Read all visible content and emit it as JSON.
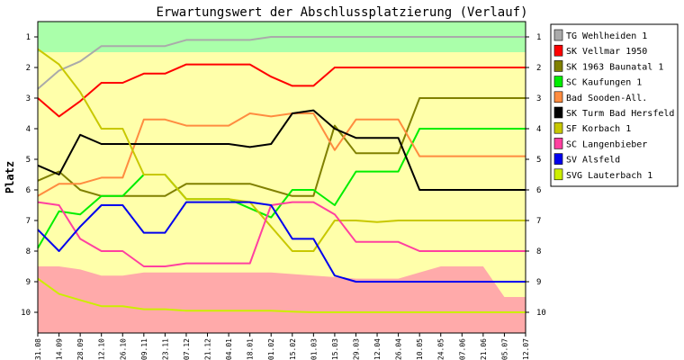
{
  "chart_data": {
    "type": "line",
    "title": "Erwartungswert der Abschlussplatzierung (Verlauf)",
    "ylabel": "Platz",
    "xlabel": "",
    "ylim": [
      1,
      10
    ],
    "y_inverted": true,
    "yticks": [
      1,
      2,
      3,
      4,
      5,
      6,
      7,
      8,
      9,
      10
    ],
    "grid": false,
    "legend_position": "right",
    "categories": [
      "31.08",
      "14.09",
      "28.09",
      "12.10",
      "26.10",
      "09.11",
      "23.11",
      "07.12",
      "21.12",
      "04.01",
      "18.01",
      "01.02",
      "15.02",
      "01.03",
      "15.03",
      "29.03",
      "12.04",
      "26.04",
      "10.05",
      "24.05",
      "07.06",
      "21.06",
      "05.07",
      "12.07"
    ],
    "bands": {
      "green": {
        "color": "#aaffaa",
        "from": 0.5,
        "to": 1.5
      },
      "yellow": {
        "color": "#ffffaa",
        "from": 1.5,
        "to": 10.5
      },
      "red": {
        "color": "#ffaaaa",
        "upper": [
          8.5,
          8.5,
          8.6,
          8.8,
          8.8,
          8.7,
          8.7,
          8.7,
          8.7,
          8.7,
          8.7,
          8.7,
          8.75,
          8.8,
          8.85,
          8.9,
          8.9,
          8.9,
          8.7,
          8.5,
          8.5,
          8.5,
          9.5,
          9.5
        ]
      }
    },
    "series": [
      {
        "name": "TG Wehlheiden 1",
        "color": "#aaaaaa",
        "values": [
          2.7,
          2.1,
          1.8,
          1.3,
          1.3,
          1.3,
          1.3,
          1.1,
          1.1,
          1.1,
          1.1,
          1.0,
          1.0,
          1.0,
          1.0,
          1.0,
          1.0,
          1.0,
          1.0,
          1.0,
          1.0,
          1.0,
          1.0,
          1.0
        ]
      },
      {
        "name": "SK Vellmar 1950",
        "color": "#ff0000",
        "values": [
          3.0,
          3.6,
          3.1,
          2.5,
          2.5,
          2.2,
          2.2,
          1.9,
          1.9,
          1.9,
          1.9,
          2.3,
          2.6,
          2.6,
          2.0,
          2.0,
          2.0,
          2.0,
          2.0,
          2.0,
          2.0,
          2.0,
          2.0,
          2.0
        ]
      },
      {
        "name": "SK 1963 Baunatal 1",
        "color": "#808000",
        "values": [
          5.7,
          5.4,
          6.0,
          6.2,
          6.2,
          6.2,
          6.2,
          5.8,
          5.8,
          5.8,
          5.8,
          6.0,
          6.2,
          6.2,
          3.9,
          4.8,
          4.8,
          4.8,
          3.0,
          3.0,
          3.0,
          3.0,
          3.0,
          3.0
        ]
      },
      {
        "name": "SC Kaufungen 1",
        "color": "#00ee00",
        "values": [
          7.9,
          6.7,
          6.8,
          6.2,
          6.2,
          5.5,
          5.5,
          6.3,
          6.3,
          6.3,
          6.6,
          6.9,
          6.0,
          6.0,
          6.5,
          5.4,
          5.4,
          5.4,
          4.0,
          4.0,
          4.0,
          4.0,
          4.0,
          4.0
        ]
      },
      {
        "name": "Bad Sooden-All.",
        "color": "#ff8c40",
        "values": [
          6.2,
          5.8,
          5.8,
          5.6,
          5.6,
          3.7,
          3.7,
          3.9,
          3.9,
          3.9,
          3.5,
          3.6,
          3.5,
          3.5,
          4.7,
          3.7,
          3.7,
          3.7,
          4.9,
          4.9,
          4.9,
          4.9,
          4.9,
          4.9
        ]
      },
      {
        "name": "SK Turm Bad Hersfeld",
        "color": "#000000",
        "values": [
          5.2,
          5.5,
          4.2,
          4.5,
          4.5,
          4.5,
          4.5,
          4.5,
          4.5,
          4.5,
          4.6,
          4.5,
          3.5,
          3.4,
          4.0,
          4.3,
          4.3,
          4.3,
          6.0,
          6.0,
          6.0,
          6.0,
          6.0,
          6.0
        ]
      },
      {
        "name": "SF Korbach 1",
        "color": "#c8c800",
        "values": [
          1.4,
          1.9,
          2.8,
          4.0,
          4.0,
          5.5,
          5.5,
          6.3,
          6.3,
          6.3,
          6.4,
          7.2,
          8.0,
          8.0,
          7.0,
          7.0,
          7.05,
          7.0,
          7.0,
          7.0,
          7.0,
          7.0,
          7.0,
          7.0
        ]
      },
      {
        "name": "SC Langenbieber",
        "color": "#ff40a0",
        "values": [
          6.4,
          6.5,
          7.6,
          8.0,
          8.0,
          8.5,
          8.5,
          8.4,
          8.4,
          8.4,
          8.4,
          6.5,
          6.4,
          6.4,
          6.8,
          7.7,
          7.7,
          7.7,
          8.0,
          8.0,
          8.0,
          8.0,
          8.0,
          8.0
        ]
      },
      {
        "name": "SV Alsfeld",
        "color": "#0000ee",
        "values": [
          7.3,
          8.0,
          7.2,
          6.5,
          6.5,
          7.4,
          7.4,
          6.4,
          6.4,
          6.4,
          6.4,
          6.5,
          7.6,
          7.6,
          8.8,
          9.0,
          9.0,
          9.0,
          9.0,
          9.0,
          9.0,
          9.0,
          9.0,
          9.0
        ]
      },
      {
        "name": "SVG Lauterbach 1",
        "color": "#ccee00",
        "values": [
          8.9,
          9.4,
          9.6,
          9.8,
          9.8,
          9.9,
          9.9,
          9.95,
          9.95,
          9.95,
          9.95,
          9.95,
          9.98,
          10.0,
          10.0,
          10.0,
          10.0,
          10.0,
          10.0,
          10.0,
          10.0,
          10.0,
          10.0,
          10.0
        ]
      }
    ]
  }
}
